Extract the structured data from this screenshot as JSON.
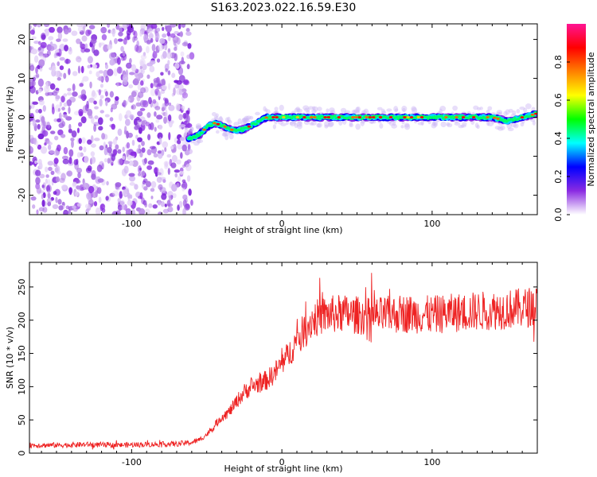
{
  "title": "S163.2023.022.16.59.E30",
  "chart_data": [
    {
      "type": "heatmap",
      "xlabel": "Height of straight line (km)",
      "ylabel": "Frequency (Hz)",
      "xlim": [
        -168,
        170
      ],
      "ylim": [
        -25,
        24
      ],
      "xticks": [
        -100,
        0,
        100
      ],
      "yticks": [
        -20,
        -10,
        0,
        10,
        20
      ],
      "colorbar": {
        "label": "Normalized spectral amplitude",
        "range": [
          0,
          1
        ],
        "ticks": [
          "0.0",
          "0.2",
          "0.4",
          "0.6",
          "0.8"
        ],
        "tick_values": [
          0.0,
          0.2,
          0.4,
          0.6,
          0.8
        ],
        "colors": [
          "#ffffff",
          "#8a2be2",
          "#0000ff",
          "#00ffff",
          "#00ff00",
          "#ffff00",
          "#ff8000",
          "#ff0000",
          "#ff1493"
        ]
      },
      "noise_region_x": [
        -168,
        -62
      ],
      "trace_frequency": {
        "x": [
          -62,
          -55,
          -50,
          -45,
          -40,
          -35,
          -30,
          -25,
          -20,
          -15,
          -10,
          0,
          20,
          40,
          60,
          80,
          100,
          120,
          140,
          150,
          160,
          170
        ],
        "y": [
          -5.5,
          -4.5,
          -2.5,
          -1.5,
          -2,
          -3,
          -3.5,
          -3,
          -2,
          -1,
          0,
          0,
          0,
          0,
          0,
          0,
          0,
          0,
          0,
          -1,
          0,
          1
        ]
      }
    },
    {
      "type": "line",
      "xlabel": "Height of straight line (km)",
      "ylabel": "SNR (10 * v/v)",
      "xlim": [
        -168,
        170
      ],
      "ylim": [
        0,
        287
      ],
      "xticks": [
        -100,
        0,
        100
      ],
      "yticks": [
        0,
        50,
        100,
        150,
        200,
        250
      ],
      "series": [
        {
          "color": "#ee2222",
          "x": [
            -168,
            -150,
            -130,
            -110,
            -90,
            -70,
            -60,
            -55,
            -50,
            -45,
            -40,
            -35,
            -30,
            -25,
            -20,
            -15,
            -10,
            -5,
            0,
            5,
            10,
            15,
            20,
            25,
            30,
            40,
            60,
            80,
            100,
            120,
            140,
            160,
            170
          ],
          "y": [
            12,
            12,
            13,
            12,
            13,
            14,
            16,
            20,
            28,
            40,
            55,
            62,
            78,
            92,
            100,
            105,
            110,
            120,
            135,
            150,
            170,
            185,
            200,
            205,
            208,
            210,
            205,
            210,
            208,
            212,
            215,
            218,
            222
          ]
        }
      ]
    }
  ]
}
